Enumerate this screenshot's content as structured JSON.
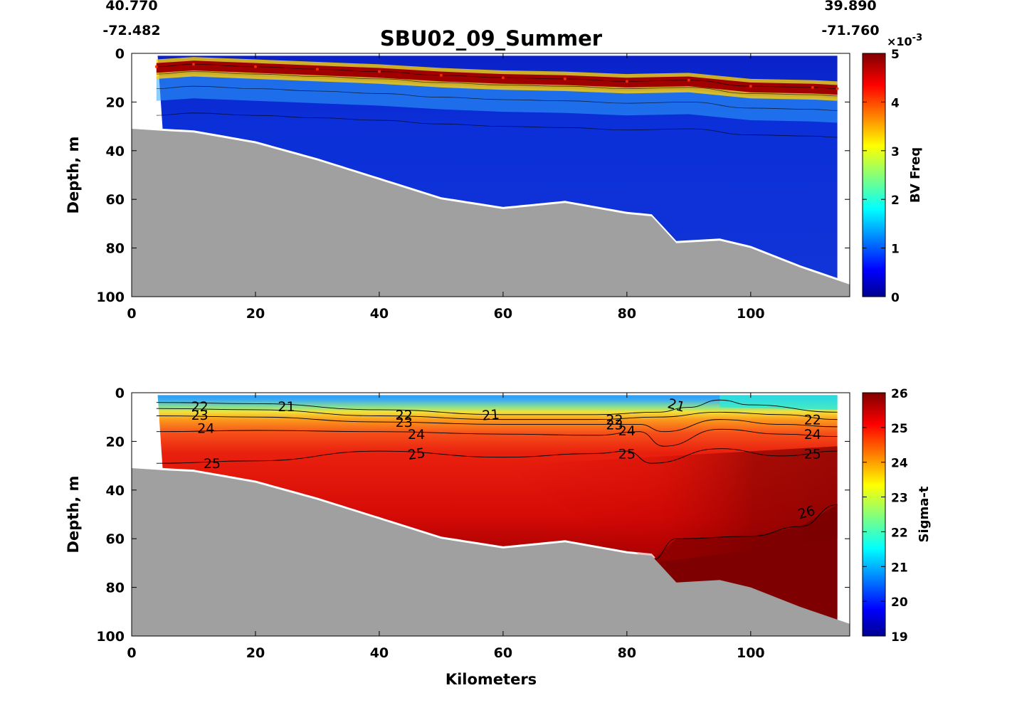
{
  "chart_data": [
    {
      "type": "heatmap",
      "title": "SBU02_09_Summer",
      "xlabel": "",
      "ylabel": "Depth, m",
      "colorbar_label": "BV Freq",
      "colorbar_multiplier": "×10",
      "colorbar_exponent": "-3",
      "xlim": [
        0,
        116
      ],
      "ylim": [
        100,
        0
      ],
      "xticks": [
        "0",
        "20",
        "40",
        "60",
        "80",
        "100"
      ],
      "yticks": [
        "0",
        "20",
        "40",
        "60",
        "80",
        "100"
      ],
      "colorbar_range": [
        0,
        5
      ],
      "colorbar_ticks": [
        "0",
        "1",
        "2",
        "3",
        "4",
        "5"
      ],
      "corner_coords": {
        "left_lat": "40.770",
        "left_lon": "-72.482",
        "right_lat": "39.890",
        "right_lon": "-71.760"
      },
      "data_xrange": [
        4.2,
        114
      ],
      "stratified_layer": [
        {
          "x": 4,
          "depth": 5.5,
          "value": 4.3
        },
        {
          "x": 10,
          "depth": 4.5,
          "value": 5.0
        },
        {
          "x": 20,
          "depth": 5.5,
          "value": 5.0
        },
        {
          "x": 30,
          "depth": 6.5,
          "value": 5.0
        },
        {
          "x": 40,
          "depth": 7.5,
          "value": 5.0
        },
        {
          "x": 50,
          "depth": 9.0,
          "value": 5.0
        },
        {
          "x": 60,
          "depth": 10.0,
          "value": 5.0
        },
        {
          "x": 70,
          "depth": 10.5,
          "value": 5.0
        },
        {
          "x": 80,
          "depth": 11.5,
          "value": 5.0
        },
        {
          "x": 90,
          "depth": 11.0,
          "value": 4.5
        },
        {
          "x": 100,
          "depth": 13.5,
          "value": 4.3
        },
        {
          "x": 110,
          "depth": 14.0,
          "value": 4.3
        },
        {
          "x": 114,
          "depth": 14.5,
          "value": 4.0
        }
      ],
      "bottom_depth": [
        {
          "x": 0,
          "depth": 31
        },
        {
          "x": 6,
          "depth": 32
        },
        {
          "x": 10,
          "depth": 32.5
        },
        {
          "x": 20,
          "depth": 37
        },
        {
          "x": 30,
          "depth": 44
        },
        {
          "x": 40,
          "depth": 52
        },
        {
          "x": 50,
          "depth": 60
        },
        {
          "x": 60,
          "depth": 64
        },
        {
          "x": 70,
          "depth": 61.5
        },
        {
          "x": 80,
          "depth": 66
        },
        {
          "x": 84,
          "depth": 67
        },
        {
          "x": 88,
          "depth": 78
        },
        {
          "x": 95,
          "depth": 77
        },
        {
          "x": 100,
          "depth": 80
        },
        {
          "x": 108,
          "depth": 88
        },
        {
          "x": 116,
          "depth": 95
        }
      ]
    },
    {
      "type": "heatmap",
      "title": "",
      "xlabel": "Kilometers",
      "ylabel": "Depth, m",
      "colorbar_label": "Sigma-t",
      "xlim": [
        0,
        116
      ],
      "ylim": [
        100,
        0
      ],
      "xticks": [
        "0",
        "20",
        "40",
        "60",
        "80",
        "100"
      ],
      "yticks": [
        "0",
        "20",
        "40",
        "60",
        "80",
        "100"
      ],
      "colorbar_range": [
        19,
        26
      ],
      "colorbar_ticks": [
        "19",
        "20",
        "21",
        "22",
        "23",
        "24",
        "25",
        "26"
      ],
      "data_xrange": [
        4.2,
        114
      ],
      "isopycnals": [
        {
          "level": 21,
          "points": [
            [
              4,
              4
            ],
            [
              20,
              4.5
            ],
            [
              40,
              7
            ],
            [
              60,
              9
            ],
            [
              75,
              9
            ],
            [
              85,
              8
            ],
            [
              90,
              6
            ],
            [
              95,
              3
            ],
            [
              100,
              5
            ],
            [
              114,
              8
            ]
          ]
        },
        {
          "level": 22,
          "points": [
            [
              4,
              6.5
            ],
            [
              20,
              7
            ],
            [
              40,
              9.5
            ],
            [
              60,
              11
            ],
            [
              75,
              11
            ],
            [
              85,
              10
            ],
            [
              95,
              8
            ],
            [
              105,
              9
            ],
            [
              114,
              11
            ]
          ]
        },
        {
          "level": 23,
          "points": [
            [
              4,
              9.5
            ],
            [
              20,
              10
            ],
            [
              40,
              12
            ],
            [
              60,
              13
            ],
            [
              75,
              13
            ],
            [
              82,
              13
            ],
            [
              86,
              16
            ],
            [
              95,
              11
            ],
            [
              105,
              13
            ],
            [
              114,
              14
            ]
          ]
        },
        {
          "level": 24,
          "points": [
            [
              4,
              16
            ],
            [
              20,
              15.5
            ],
            [
              40,
              16
            ],
            [
              60,
              17
            ],
            [
              75,
              17.5
            ],
            [
              82,
              16
            ],
            [
              86,
              22
            ],
            [
              95,
              15
            ],
            [
              105,
              17
            ],
            [
              114,
              18
            ]
          ]
        },
        {
          "level": 25,
          "points": [
            [
              4,
              29
            ],
            [
              20,
              28
            ],
            [
              40,
              24
            ],
            [
              60,
              26.5
            ],
            [
              75,
              25
            ],
            [
              80,
              24
            ],
            [
              84,
              29
            ],
            [
              95,
              23
            ],
            [
              105,
              26
            ],
            [
              114,
              24
            ]
          ]
        },
        {
          "level": 26,
          "points": [
            [
              84,
              69
            ],
            [
              88,
              60
            ],
            [
              100,
              59
            ],
            [
              108,
              55
            ],
            [
              114,
              46
            ]
          ]
        }
      ],
      "contour_labels": [
        {
          "text": "21",
          "x": 25,
          "depth": 5.5,
          "rot": 0
        },
        {
          "text": "21",
          "x": 58,
          "depth": 9,
          "rot": -5
        },
        {
          "text": "21",
          "x": 88,
          "depth": 5,
          "rot": 15
        },
        {
          "text": "22",
          "x": 11,
          "depth": 5.5,
          "rot": 0
        },
        {
          "text": "22",
          "x": 44,
          "depth": 9,
          "rot": 0
        },
        {
          "text": "22",
          "x": 78,
          "depth": 11,
          "rot": 0
        },
        {
          "text": "22",
          "x": 110,
          "depth": 11,
          "rot": 0
        },
        {
          "text": "23",
          "x": 11,
          "depth": 9,
          "rot": 0
        },
        {
          "text": "23",
          "x": 44,
          "depth": 12,
          "rot": 0
        },
        {
          "text": "23",
          "x": 78,
          "depth": 13,
          "rot": 0
        },
        {
          "text": "24",
          "x": 12,
          "depth": 14.5,
          "rot": 0
        },
        {
          "text": "24",
          "x": 46,
          "depth": 17,
          "rot": 0
        },
        {
          "text": "24",
          "x": 80,
          "depth": 15.5,
          "rot": 0
        },
        {
          "text": "24",
          "x": 110,
          "depth": 17,
          "rot": 0
        },
        {
          "text": "25",
          "x": 13,
          "depth": 29,
          "rot": 0
        },
        {
          "text": "25",
          "x": 46,
          "depth": 25,
          "rot": -8
        },
        {
          "text": "25",
          "x": 80,
          "depth": 25,
          "rot": 0
        },
        {
          "text": "25",
          "x": 110,
          "depth": 25,
          "rot": 0
        },
        {
          "text": "26",
          "x": 109,
          "depth": 49,
          "rot": -15
        }
      ],
      "bottom_depth": [
        {
          "x": 0,
          "depth": 31
        },
        {
          "x": 6,
          "depth": 32
        },
        {
          "x": 10,
          "depth": 32.5
        },
        {
          "x": 20,
          "depth": 37
        },
        {
          "x": 30,
          "depth": 44
        },
        {
          "x": 40,
          "depth": 52
        },
        {
          "x": 50,
          "depth": 60
        },
        {
          "x": 60,
          "depth": 64
        },
        {
          "x": 70,
          "depth": 61.5
        },
        {
          "x": 80,
          "depth": 66
        },
        {
          "x": 84,
          "depth": 67
        },
        {
          "x": 88,
          "depth": 78
        },
        {
          "x": 95,
          "depth": 77
        },
        {
          "x": 100,
          "depth": 80
        },
        {
          "x": 108,
          "depth": 88
        },
        {
          "x": 116,
          "depth": 95
        }
      ]
    }
  ],
  "colors": {
    "bathymetry": "#a0a0a0",
    "axis": "#000000",
    "bv_background": "#1030d0",
    "bv_layer": "#8b0000",
    "sigma_deep": "#7f0000",
    "sigma_mid": "#e81c0c"
  }
}
